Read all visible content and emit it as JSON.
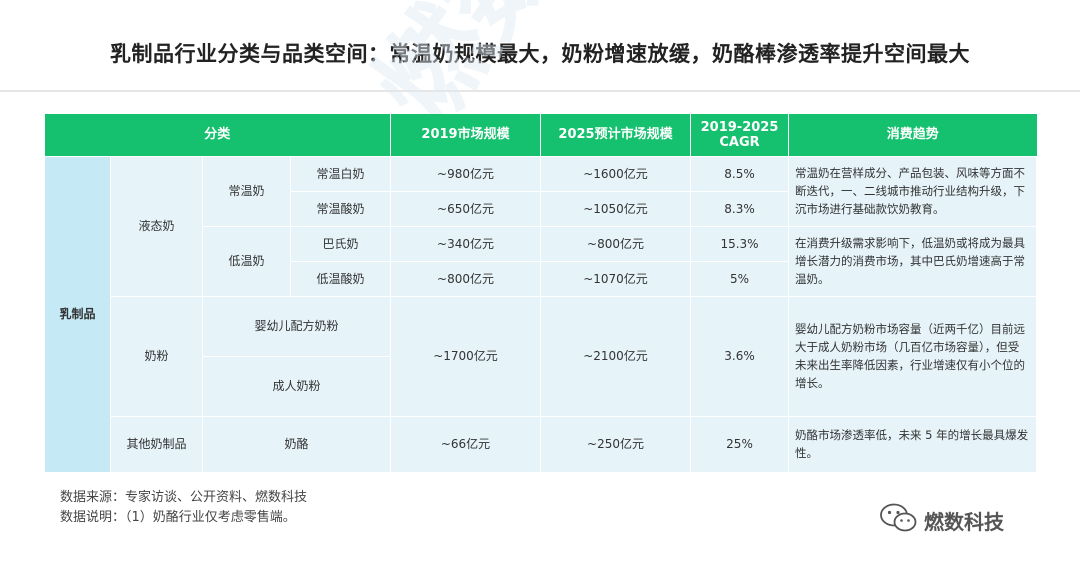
{
  "title": "乳制品行业分类与品类空间：常温奶规模最大，奶粉增速放缓，奶酪棒渗透率提升空间最大",
  "watermark": "燃数科技 DATA BURN",
  "table": {
    "headers": {
      "category": "分类",
      "size_2019": "2019市场规模",
      "size_2025": "2025预计市场规模",
      "cagr_line1": "2019-2025",
      "cagr_line2": "CAGR",
      "trend": "消费趋势"
    },
    "level1": "乳制品",
    "groups": {
      "liquid": "液态奶",
      "ambient": "常温奶",
      "chilled": "低温奶",
      "powder": "奶粉",
      "other": "其他奶制品"
    },
    "rows": [
      {
        "name": "常温白奶",
        "size_2019": "~980亿元",
        "size_2025": "~1600亿元",
        "cagr": "8.5%"
      },
      {
        "name": "常温酸奶",
        "size_2019": "~650亿元",
        "size_2025": "~1050亿元",
        "cagr": "8.3%"
      },
      {
        "name": "巴氏奶",
        "size_2019": "~340亿元",
        "size_2025": "~800亿元",
        "cagr": "15.3%"
      },
      {
        "name": "低温酸奶",
        "size_2019": "~800亿元",
        "size_2025": "~1070亿元",
        "cagr": "5%"
      },
      {
        "name": "婴幼儿配方奶粉"
      },
      {
        "name": "成人奶粉"
      },
      {
        "name": "奶酪",
        "size_2019": "~66亿元",
        "size_2025": "~250亿元",
        "cagr": "25%"
      }
    ],
    "powder_merged": {
      "size_2019": "~1700亿元",
      "size_2025": "~2100亿元",
      "cagr": "3.6%"
    },
    "trends": {
      "ambient": "常温奶在营样成分、产品包装、风味等方面不断迭代，一、二线城市推动行业结构升级，下沉市场进行基础款饮奶教育。",
      "chilled": "在消费升级需求影响下，低温奶或将成为最具增长潜力的消费市场，其中巴氏奶增速高于常温奶。",
      "powder": "婴幼儿配方奶粉市场容量（近两千亿）目前远大于成人奶粉市场（几百亿市场容量），但受未来出生率降低因素，行业增速仅有小个位的增长。",
      "cheese": "奶酪市场渗透率低，未来 5 年的增长最具爆发性。"
    }
  },
  "footer": {
    "source": "数据来源：专家访谈、公开资料、燃数科技",
    "note": "数据说明：（1）奶酪行业仅考虑零售端。"
  },
  "brand": {
    "name": "燃数科技",
    "icon": "wechat-icon"
  },
  "colors": {
    "header_green": "#15c06e",
    "cell_bg": "#e6f4fa",
    "level1_bg": "#c6e9f6"
  }
}
